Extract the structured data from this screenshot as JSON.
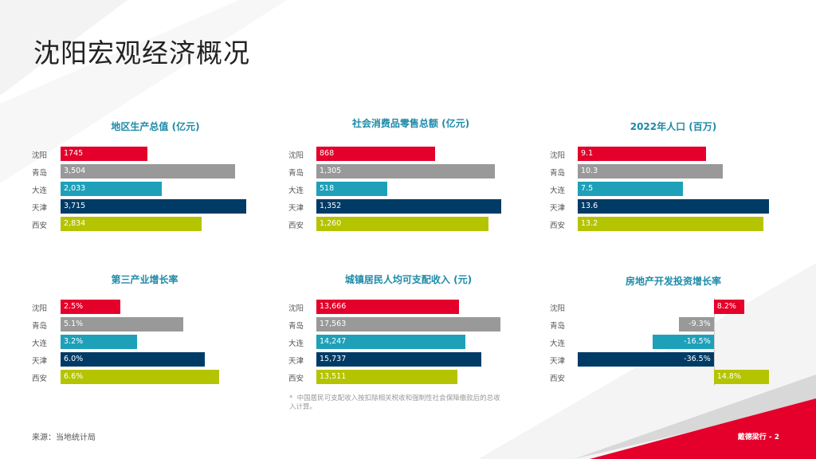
{
  "title": "沈阳宏观经济概况",
  "source": "来源：当地统计局",
  "page_label": "戴德梁行 - 2",
  "footnote_marker": "*",
  "footnote": "中国居民可支配收入按扣除相关税收和强制性社会保障缴款后的总收入计算。",
  "colors": {
    "沈阳": "#e4002b",
    "青岛": "#999999",
    "大连": "#1ea0b9",
    "天津": "#003b66",
    "西安": "#b5c400"
  },
  "chart_data": [
    {
      "type": "bar",
      "title": "地区生产总值 (亿元)",
      "categories": [
        "沈阳",
        "青岛",
        "大连",
        "天津",
        "西安"
      ],
      "values": [
        1745,
        3504,
        2033,
        3715,
        2834
      ],
      "labels": [
        "1745",
        "3,504",
        "2,033",
        "3,715",
        "2,834"
      ],
      "xlim": [
        0,
        3800
      ]
    },
    {
      "type": "bar",
      "title": "社会消费品零售总额 (亿元)",
      "categories": [
        "沈阳",
        "青岛",
        "大连",
        "天津",
        "西安"
      ],
      "values": [
        868,
        1305,
        518,
        1352,
        1260
      ],
      "labels": [
        "868",
        "1,305",
        "518",
        "1,352",
        "1,260"
      ],
      "xlim": [
        0,
        1380
      ]
    },
    {
      "type": "bar",
      "title": "2022年人口 (百万)",
      "categories": [
        "沈阳",
        "青岛",
        "大连",
        "天津",
        "西安"
      ],
      "values": [
        9.1,
        10.3,
        7.5,
        13.6,
        13.2
      ],
      "labels": [
        "9.1",
        "10.3",
        "7.5",
        "13.6",
        "13.2"
      ],
      "xlim": [
        0,
        13.6
      ]
    },
    {
      "type": "bar",
      "title": "第三产业增长率",
      "categories": [
        "沈阳",
        "青岛",
        "大连",
        "天津",
        "西安"
      ],
      "values": [
        2.5,
        5.1,
        3.2,
        6.0,
        6.6
      ],
      "labels": [
        "2.5%",
        "5.1%",
        "3.2%",
        "6.0%",
        "6.6%"
      ],
      "xlim": [
        0,
        7.0
      ]
    },
    {
      "type": "bar",
      "title": "城镇居民人均可支配收入 (元)",
      "categories": [
        "沈阳",
        "青岛",
        "大连",
        "天津",
        "西安"
      ],
      "values": [
        13666,
        17563,
        14247,
        15737,
        13511
      ],
      "labels": [
        "13,666",
        "17,563",
        "14,247",
        "15,737",
        "13,511"
      ],
      "xlim": [
        0,
        17600
      ]
    },
    {
      "type": "bar",
      "title": "房地产开发投资增长率",
      "categories": [
        "沈阳",
        "青岛",
        "大连",
        "天津",
        "西安"
      ],
      "values": [
        8.2,
        -9.3,
        -16.5,
        -36.5,
        14.8
      ],
      "labels": [
        "8.2%",
        "-9.3%",
        "-16.5%",
        "-36.5%",
        "14.8%"
      ],
      "xlim": [
        -36.5,
        14.8
      ]
    }
  ]
}
